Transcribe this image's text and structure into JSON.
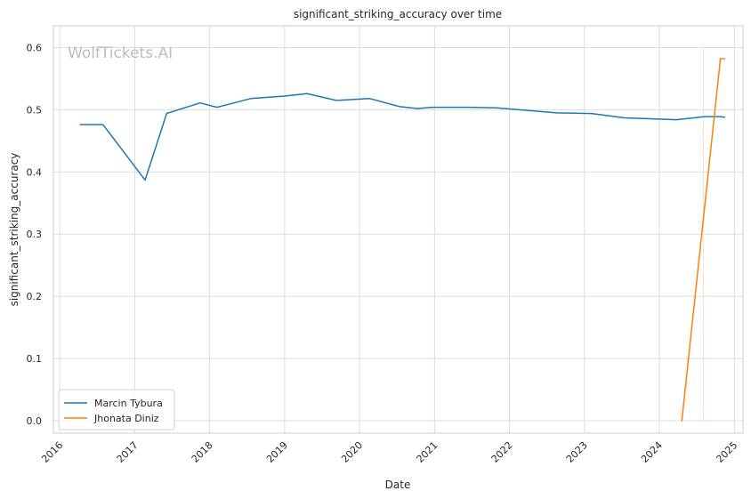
{
  "chart_data": {
    "type": "line",
    "title": "significant_striking_accuracy over time",
    "xlabel": "Date",
    "ylabel": "significant_striking_accuracy",
    "watermark": "WolfTickets.AI",
    "xlim": [
      "2015-12-01",
      "2025-02-12"
    ],
    "ylim": [
      -0.02,
      0.635
    ],
    "x_ticks": [
      "2016",
      "2017",
      "2018",
      "2019",
      "2020",
      "2021",
      "2022",
      "2023",
      "2024",
      "2025"
    ],
    "y_ticks": [
      "0.0",
      "0.1",
      "0.2",
      "0.3",
      "0.4",
      "0.5",
      "0.6"
    ],
    "y_tick_values": [
      0.0,
      0.1,
      0.2,
      0.3,
      0.4,
      0.5,
      0.6
    ],
    "grid": true,
    "legend_position": "lower-left",
    "series": [
      {
        "name": "Marcin Tybura",
        "color": "#1f77b4",
        "points": [
          [
            "2016-04-10",
            0.476
          ],
          [
            "2016-07-30",
            0.476
          ],
          [
            "2017-02-20",
            0.387
          ],
          [
            "2017-06-05",
            0.494
          ],
          [
            "2017-11-15",
            0.511
          ],
          [
            "2018-02-05",
            0.504
          ],
          [
            "2018-07-20",
            0.518
          ],
          [
            "2019-01-01",
            0.522
          ],
          [
            "2019-04-20",
            0.526
          ],
          [
            "2019-09-10",
            0.515
          ],
          [
            "2020-02-20",
            0.518
          ],
          [
            "2020-07-15",
            0.505
          ],
          [
            "2020-10-10",
            0.502
          ],
          [
            "2020-12-20",
            0.504
          ],
          [
            "2021-06-15",
            0.504
          ],
          [
            "2021-10-30",
            0.503
          ],
          [
            "2022-08-20",
            0.495
          ],
          [
            "2023-02-05",
            0.494
          ],
          [
            "2023-07-15",
            0.487
          ],
          [
            "2024-01-01",
            0.485
          ],
          [
            "2024-03-25",
            0.484
          ],
          [
            "2024-08-10",
            0.489
          ],
          [
            "2024-10-20",
            0.489
          ],
          [
            "2024-11-15",
            0.488
          ]
        ]
      },
      {
        "name": "Jhonata Diniz",
        "color": "#ff7f0e",
        "points": [
          [
            "2024-04-20",
            0.0
          ],
          [
            "2024-10-25",
            0.582
          ],
          [
            "2024-11-15",
            0.582
          ]
        ]
      }
    ],
    "annotation_line": {
      "x": "2024-08-03",
      "y_range": [
        0.0,
        0.605
      ],
      "color": "#ffe0c2"
    }
  }
}
